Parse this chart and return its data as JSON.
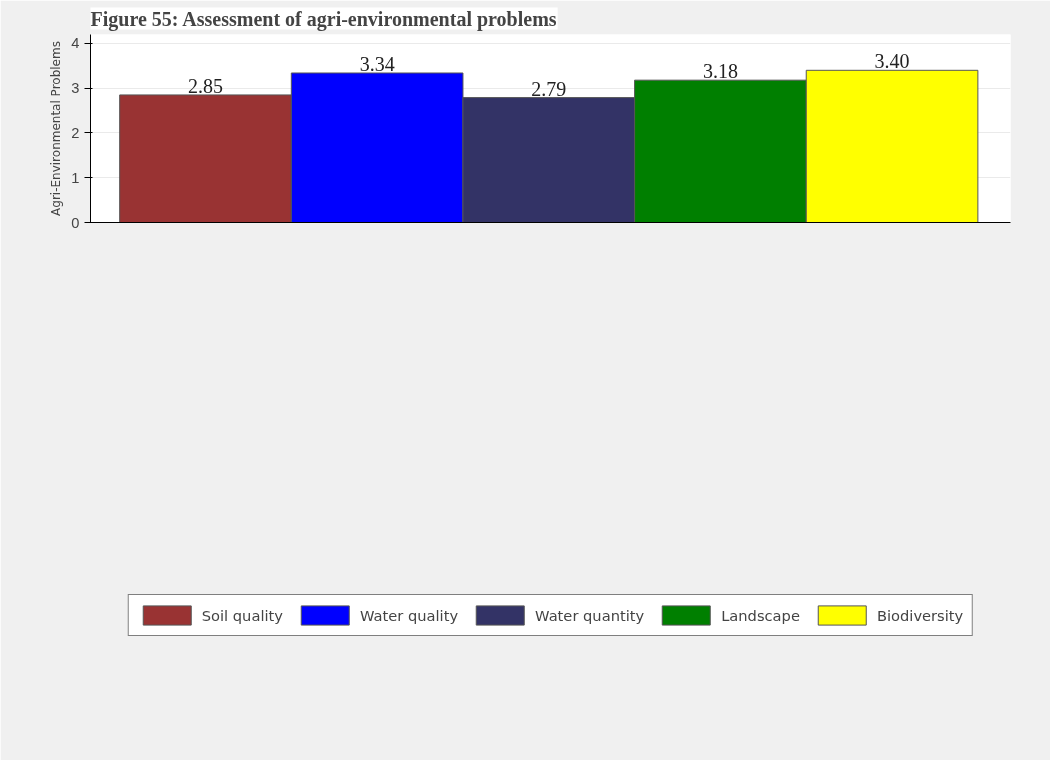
{
  "chart_data": {
    "type": "bar",
    "title": "Figure 55: Assessment of agri-environmental problems",
    "ylabel": "Agri-Environmental Problems",
    "categories": [
      null,
      null,
      null,
      null,
      null
    ],
    "series": [
      {
        "name": "Soil quality",
        "color": "#993333",
        "values": [
          2.85,
          null,
          null,
          null,
          null
        ],
        "value_labels": [
          "2.85",
          null,
          null,
          null,
          null
        ]
      },
      {
        "name": "Water quality",
        "color": "#0000ff",
        "values": [
          null,
          3.34,
          null,
          null,
          null
        ],
        "value_labels": [
          null,
          "3.34",
          null,
          null,
          null
        ]
      },
      {
        "name": "Water quantity",
        "color": "#333366",
        "values": [
          null,
          null,
          2.79,
          null,
          null
        ],
        "value_labels": [
          null,
          null,
          "2.79",
          null,
          null
        ]
      },
      {
        "name": "Landscape",
        "color": "#007f00",
        "values": [
          null,
          null,
          null,
          3.18,
          null
        ],
        "value_labels": [
          null,
          null,
          null,
          "3.18",
          null
        ]
      },
      {
        "name": "Biodiversity",
        "color": "#ffff00",
        "values": [
          null,
          null,
          null,
          null,
          3.4
        ],
        "value_labels": [
          null,
          null,
          null,
          null,
          "3.40"
        ]
      }
    ],
    "ylim": [
      0,
      4.2
    ],
    "yticks": [
      0,
      1,
      2,
      3,
      4
    ],
    "grid": "y",
    "legend": "bottom"
  }
}
